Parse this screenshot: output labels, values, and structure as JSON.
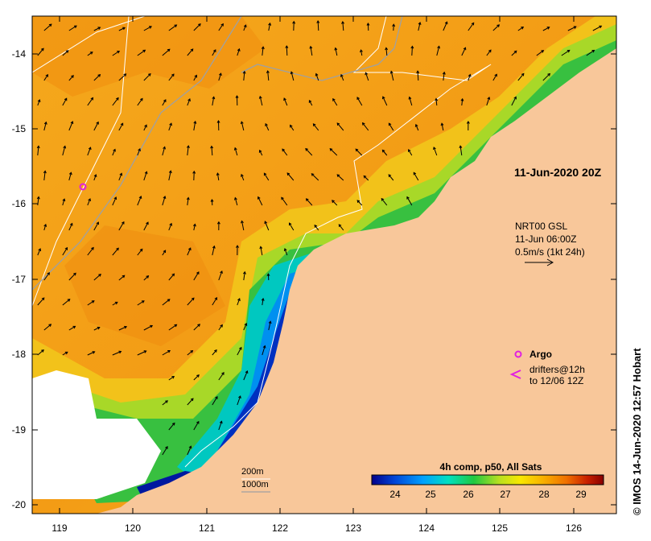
{
  "map": {
    "date_label": "11-Jun-2020 20Z",
    "current_source": {
      "line1": "NRT00 GSL",
      "line2": "11-Jun 06:00Z",
      "line3": "0.5m/s (1kt 24h)"
    },
    "argo_label": "Argo",
    "drifters_line1": "drifters@12h",
    "drifters_line2": "to 12/06 12Z",
    "depth_label_200": "200m",
    "depth_label_1000": "1000m",
    "credit": "© IMOS 14-Jun-2020 12:57 Hobart",
    "lat_ticks": [
      "-14",
      "-15",
      "-16",
      "-17",
      "-18",
      "-19",
      "-20"
    ],
    "lon_ticks": [
      "119",
      "120",
      "121",
      "122",
      "123",
      "124",
      "125",
      "126"
    ],
    "colors": {
      "land": "#f8c79a",
      "no_data": "#ffffff",
      "warm": "#f2a21b",
      "argo": "#e020e0"
    }
  },
  "colorbar": {
    "title": "4h comp, p50, All Sats",
    "ticks": [
      "24",
      "25",
      "26",
      "27",
      "28",
      "29"
    ],
    "stops": [
      "#00008b",
      "#0046d8",
      "#00a0ff",
      "#00e0c0",
      "#20c840",
      "#b8e020",
      "#f8e800",
      "#f8b000",
      "#f07000",
      "#c82000",
      "#880000"
    ]
  }
}
